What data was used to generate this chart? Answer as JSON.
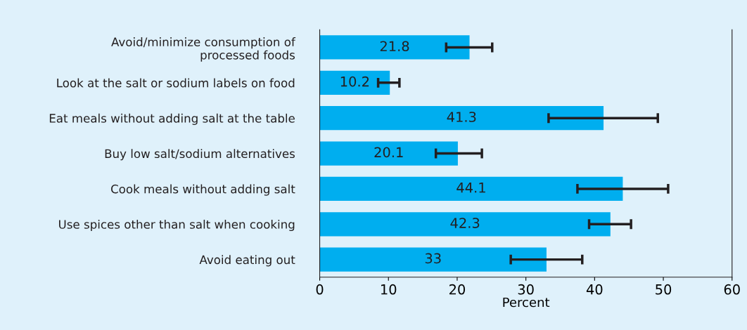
{
  "chart_data": {
    "type": "bar",
    "orientation": "horizontal",
    "xlabel": "Percent",
    "categories": [
      "Avoid/minimize consumption of\nprocessed foods",
      "Look at the salt or sodium labels on food",
      "Eat meals without adding salt at the table",
      "Buy low salt/sodium alternatives",
      "Cook meals without adding salt",
      "Use spices other than salt when cooking",
      "Avoid eating out"
    ],
    "values": [
      21.8,
      10.2,
      41.3,
      20.1,
      44.1,
      42.3,
      33
    ],
    "errors": [
      [
        18.4,
        25.1
      ],
      [
        8.5,
        11.6
      ],
      [
        33.3,
        49.2
      ],
      [
        16.9,
        23.6
      ],
      [
        37.5,
        50.7
      ],
      [
        39.2,
        45.3
      ],
      [
        27.8,
        38.2
      ]
    ],
    "color": "#00aeef",
    "data_labels": true,
    "xlim": [
      0,
      60
    ],
    "xticks": [
      0,
      10,
      20,
      30,
      40,
      50,
      60
    ],
    "grid": false,
    "legend": false
  }
}
